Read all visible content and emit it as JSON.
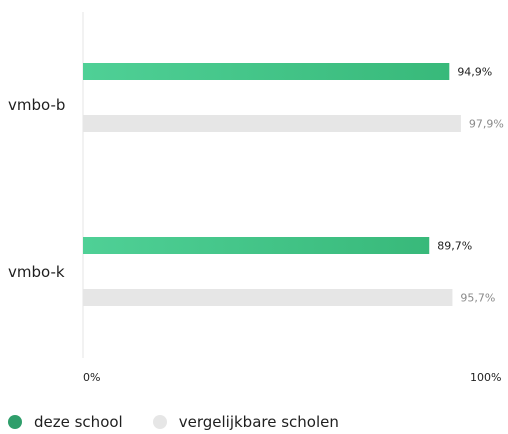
{
  "chart_data": {
    "type": "bar",
    "orientation": "horizontal",
    "categories": [
      "vmbo-b",
      "vmbo-k"
    ],
    "series": [
      {
        "name": "deze school",
        "values": [
          94.9,
          89.7
        ],
        "labels": [
          "94,9%",
          "89,7%"
        ],
        "color": "#3cc084"
      },
      {
        "name": "vergelijkbare scholen",
        "values": [
          97.9,
          95.7
        ],
        "labels": [
          "97,9%",
          "95,7%"
        ],
        "color": "#e6e6e6"
      }
    ],
    "xlim": [
      0,
      100
    ],
    "xticks": [
      "0%",
      "100%"
    ],
    "grid": false,
    "legend_position": "bottom-left"
  },
  "legend": {
    "items": [
      {
        "label": "deze school",
        "color": "#2f9e6b"
      },
      {
        "label": "vergelijkbare scholen",
        "color": "#e6e6e6"
      }
    ]
  }
}
